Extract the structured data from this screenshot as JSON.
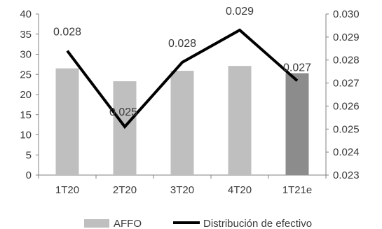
{
  "chart_data": {
    "type": "bar",
    "categories": [
      "1T20",
      "2T20",
      "3T20",
      "4T20",
      "1T21e"
    ],
    "series": [
      {
        "name": "AFFO",
        "type": "bar",
        "axis": "left",
        "values": [
          26.5,
          23.3,
          25.9,
          27.1,
          25.3
        ],
        "color": "#bfbfbf",
        "highlight_color": "#8c8c8c",
        "highlight_index": 4
      },
      {
        "name": "Distribución de efectivo",
        "type": "line",
        "axis": "right",
        "values": [
          0.0284,
          0.0251,
          0.0279,
          0.0293,
          0.0271
        ],
        "labels": [
          "0.028",
          "0.025",
          "0.028",
          "0.029",
          "0.027"
        ],
        "color": "#000000"
      }
    ],
    "y_left": {
      "min": 0,
      "max": 40,
      "step": 5,
      "ticks": [
        "0",
        "5",
        "10",
        "15",
        "20",
        "25",
        "30",
        "35",
        "40"
      ]
    },
    "y_right": {
      "min": 0.023,
      "max": 0.03,
      "step": 0.001,
      "ticks": [
        "0.023",
        "0.024",
        "0.025",
        "0.026",
        "0.027",
        "0.028",
        "0.029",
        "0.030"
      ]
    },
    "grid": false,
    "legend": "bottom"
  }
}
